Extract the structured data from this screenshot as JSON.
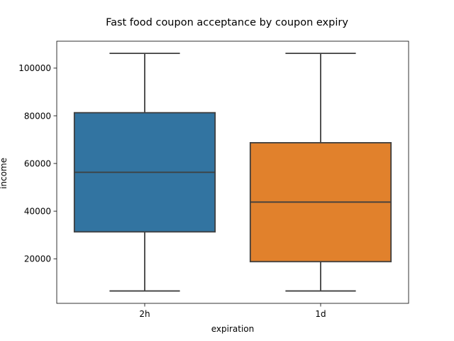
{
  "chart_data": {
    "type": "box",
    "title": "Fast food coupon acceptance by coupon expiry",
    "xlabel": "expiration",
    "ylabel": "income",
    "categories": [
      "2h",
      "1d"
    ],
    "colors": [
      "#3274a1",
      "#e1812c"
    ],
    "boxes": [
      {
        "category": "2h",
        "whisker_low": 6500,
        "q1": 31300,
        "median": 56300,
        "q3": 81300,
        "whisker_high": 106200
      },
      {
        "category": "1d",
        "whisker_low": 6500,
        "q1": 18800,
        "median": 43800,
        "q3": 68700,
        "whisker_high": 106200
      }
    ],
    "ylim": [
      1300,
      111300
    ],
    "yticks": [
      20000,
      40000,
      60000,
      80000,
      100000
    ],
    "ytick_labels": [
      "20000",
      "40000",
      "60000",
      "80000",
      "100000"
    ],
    "grid": false,
    "legend": "none"
  }
}
